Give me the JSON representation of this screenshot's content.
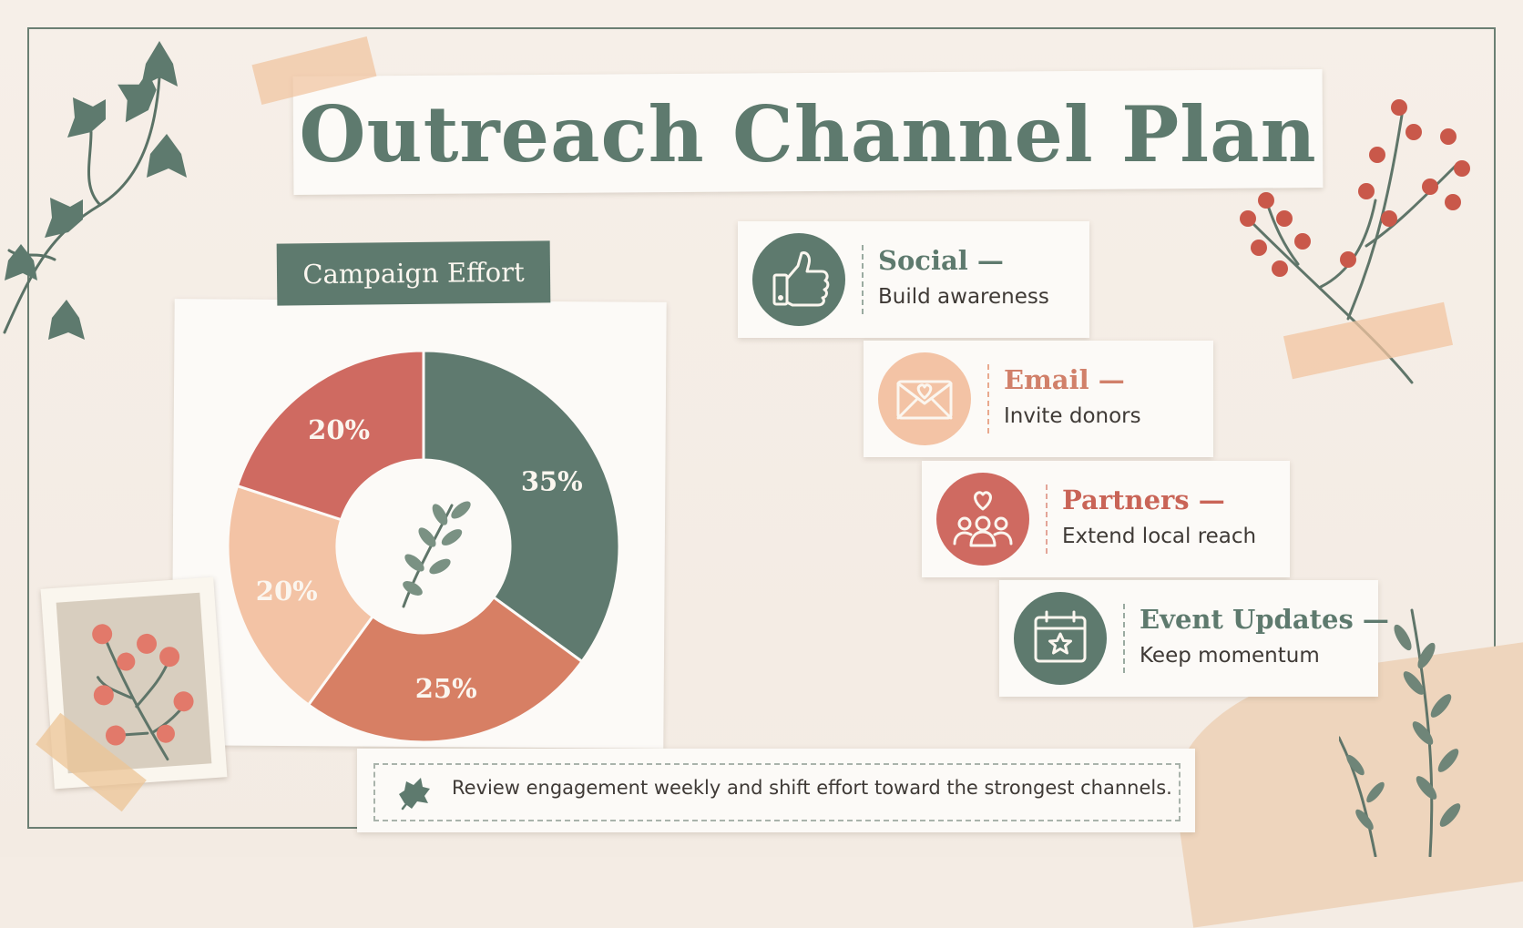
{
  "title": "Outreach Channel Plan",
  "chart_data": {
    "type": "pie",
    "title": "Campaign Effort",
    "slices": [
      {
        "label": "35%",
        "value": 35,
        "color": "#5f7a6f"
      },
      {
        "label": "25%",
        "value": 25,
        "color": "#d77f64"
      },
      {
        "label": "20%",
        "value": 20,
        "color": "#f3c3a5"
      },
      {
        "label": "20%",
        "value": 20,
        "color": "#cf6a61"
      }
    ],
    "start_at": "top",
    "direction": "clockwise",
    "donut": true
  },
  "channels": [
    {
      "title": "Social —",
      "description": "Build awareness",
      "icon": "thumbs-up-icon",
      "color": "#5e7a6e",
      "title_color": "#5e7a6e",
      "divider_color": "#9aaaa0"
    },
    {
      "title": "Email —",
      "description": "Invite donors",
      "icon": "envelope-heart-icon",
      "color": "#f3c3a5",
      "title_color": "#d1806a",
      "divider_color": "#e9a98e"
    },
    {
      "title": "Partners —",
      "description": "Extend local reach",
      "icon": "community-heart-icon",
      "color": "#cf6a61",
      "title_color": "#c96457",
      "divider_color": "#e3a598"
    },
    {
      "title": "Event Updates —",
      "description": "Keep momentum",
      "icon": "calendar-star-icon",
      "color": "#5e7a6e",
      "title_color": "#5e7a6e",
      "divider_color": "#9aaaa0"
    }
  ],
  "note": {
    "text": "Review engagement weekly and shift effort toward the strongest channels.",
    "icon": "leaf-icon"
  }
}
